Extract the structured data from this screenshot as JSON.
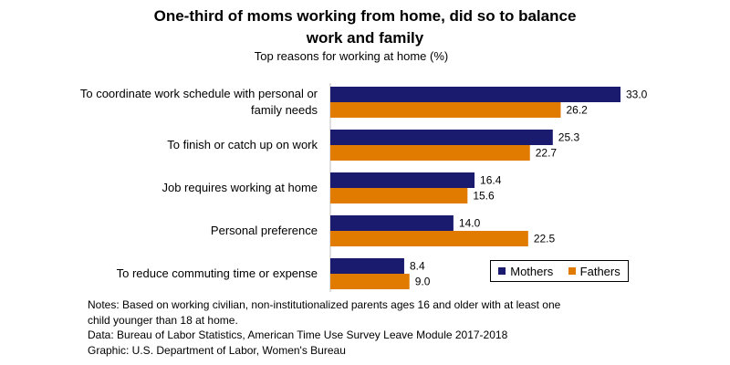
{
  "title_line1": "One-third of moms working from home, did so to balance",
  "title_line2": "work and family",
  "subtitle": "Top reasons for working at home (%)",
  "colors": {
    "mothers": "#1a1a6e",
    "fathers": "#e07b00"
  },
  "chart_data": {
    "type": "bar",
    "orientation": "horizontal",
    "categories": [
      [
        "To coordinate work schedule with personal or",
        "family needs"
      ],
      [
        "To finish or catch up on work"
      ],
      [
        "Job requires working at home"
      ],
      [
        "Personal preference"
      ],
      [
        "To reduce commuting time or expense"
      ]
    ],
    "series": [
      {
        "name": "Mothers",
        "values": [
          33.0,
          25.3,
          16.4,
          14.0,
          8.4
        ]
      },
      {
        "name": "Fathers",
        "values": [
          26.2,
          22.7,
          15.6,
          22.5,
          9.0
        ]
      }
    ],
    "value_format": "0.0",
    "legend_position": "bottom-right",
    "grid": false
  },
  "notes": [
    "Notes: Based on working civilian, non-institutionalized parents ages 16 and older with at least one",
    "child younger than 18 at home.",
    "Data: Bureau of Labor Statistics, American Time Use Survey Leave Module 2017-2018",
    "Graphic: U.S. Department of Labor, Women's Bureau"
  ]
}
